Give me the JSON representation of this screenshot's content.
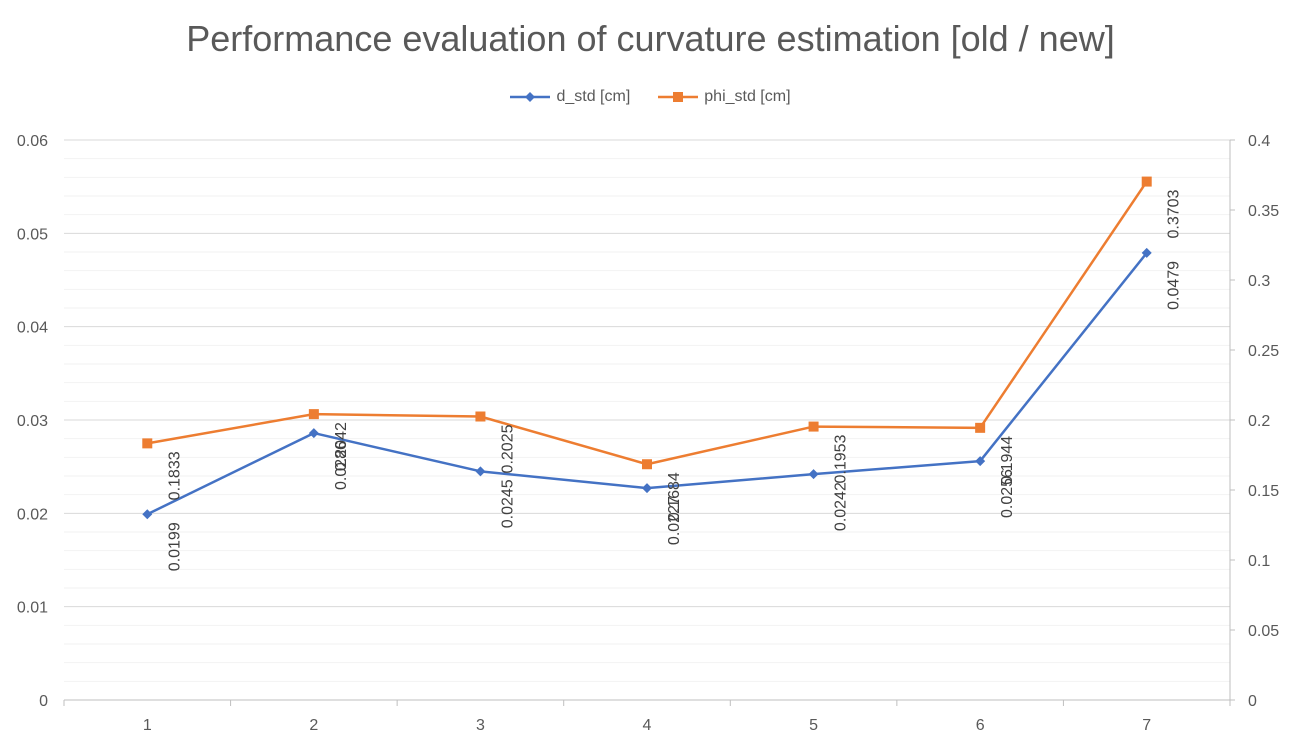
{
  "chart_data": {
    "type": "line",
    "title": "Performance evaluation of curvature estimation [old / new]",
    "x": [
      1,
      2,
      3,
      4,
      5,
      6,
      7
    ],
    "grid": true,
    "legend_position": "top",
    "y_left": {
      "min": 0,
      "max": 0.06,
      "major_step": 0.01,
      "minor_step": 0.002,
      "tick_labels": [
        "0",
        "0.01",
        "0.02",
        "0.03",
        "0.04",
        "0.05",
        "0.06"
      ]
    },
    "y_right": {
      "min": 0,
      "max": 0.4,
      "major_step": 0.05,
      "tick_labels": [
        "0",
        "0.05",
        "0.1",
        "0.15",
        "0.2",
        "0.25",
        "0.3",
        "0.35",
        "0.4"
      ]
    },
    "x_tick_labels": [
      "1",
      "2",
      "3",
      "4",
      "5",
      "6",
      "7"
    ],
    "series": [
      {
        "name": "d_std [cm]",
        "axis": "left",
        "color": "#4472C4",
        "marker": "diamond",
        "values": [
          0.0199,
          0.0286,
          0.0245,
          0.0227,
          0.0242,
          0.0256,
          0.0479
        ],
        "labels": [
          "0.0199",
          "0.0286",
          "0.0245",
          "0.0227",
          "0.0242",
          "0.0256",
          "0.0479"
        ]
      },
      {
        "name": "phi_std [cm]",
        "axis": "right",
        "color": "#ED7D31",
        "marker": "square",
        "values": [
          0.1833,
          0.2042,
          0.2025,
          0.1684,
          0.1953,
          0.1944,
          0.3703
        ],
        "labels": [
          "0.1833",
          "0.2042",
          "0.2025",
          "0.1684",
          "0.1953",
          "0.1944",
          "0.3703"
        ]
      }
    ]
  }
}
